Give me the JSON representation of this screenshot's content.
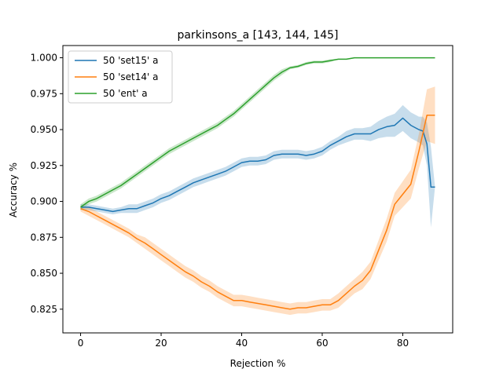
{
  "chart_data": {
    "type": "line",
    "title": "parkinsons_a  [143, 144, 145]",
    "xlabel": "Rejection %",
    "ylabel": "Accuracy %",
    "xlim": [
      -4.4,
      92.4
    ],
    "ylim": [
      0.8085,
      1.0085
    ],
    "xticks": [
      0,
      20,
      40,
      60,
      80
    ],
    "yticks": [
      0.825,
      0.85,
      0.875,
      0.9,
      0.925,
      0.95,
      0.975,
      1.0
    ],
    "xtick_labels": [
      "0",
      "20",
      "40",
      "60",
      "80"
    ],
    "ytick_labels": [
      "0.825",
      "0.850",
      "0.875",
      "0.900",
      "0.925",
      "0.950",
      "0.975",
      "1.000"
    ],
    "grid": false,
    "legend_position": "top-left",
    "series": [
      {
        "name": "50 'set15' a",
        "color": "#1f77b4",
        "x": [
          0,
          2,
          4,
          6,
          8,
          10,
          12,
          14,
          16,
          18,
          20,
          22,
          24,
          26,
          28,
          30,
          32,
          34,
          36,
          38,
          40,
          42,
          44,
          46,
          48,
          50,
          52,
          54,
          56,
          58,
          60,
          62,
          64,
          66,
          68,
          70,
          72,
          74,
          76,
          78,
          80,
          82,
          84,
          85,
          86,
          87,
          88
        ],
        "y": [
          0.896,
          0.896,
          0.895,
          0.894,
          0.893,
          0.894,
          0.895,
          0.895,
          0.897,
          0.899,
          0.902,
          0.904,
          0.907,
          0.91,
          0.913,
          0.915,
          0.917,
          0.919,
          0.921,
          0.924,
          0.927,
          0.928,
          0.928,
          0.929,
          0.932,
          0.933,
          0.933,
          0.933,
          0.932,
          0.933,
          0.935,
          0.939,
          0.942,
          0.945,
          0.947,
          0.947,
          0.947,
          0.95,
          0.952,
          0.953,
          0.958,
          0.953,
          0.95,
          0.949,
          0.94,
          0.91,
          0.91
        ],
        "band": [
          0.002,
          0.002,
          0.002,
          0.002,
          0.002,
          0.002,
          0.003,
          0.003,
          0.003,
          0.003,
          0.003,
          0.003,
          0.003,
          0.003,
          0.003,
          0.003,
          0.003,
          0.003,
          0.003,
          0.003,
          0.003,
          0.003,
          0.003,
          0.003,
          0.003,
          0.003,
          0.003,
          0.003,
          0.003,
          0.003,
          0.003,
          0.003,
          0.003,
          0.004,
          0.004,
          0.004,
          0.005,
          0.006,
          0.007,
          0.008,
          0.009,
          0.009,
          0.009,
          0.01,
          0.015,
          0.028,
          0.0
        ]
      },
      {
        "name": "50 'set14' a",
        "color": "#ff7f0e",
        "x": [
          0,
          2,
          4,
          6,
          8,
          10,
          12,
          14,
          16,
          18,
          20,
          22,
          24,
          26,
          28,
          30,
          32,
          34,
          36,
          38,
          40,
          42,
          44,
          46,
          48,
          50,
          52,
          54,
          56,
          58,
          60,
          62,
          64,
          66,
          68,
          70,
          72,
          74,
          76,
          78,
          80,
          82,
          84,
          86,
          88
        ],
        "y": [
          0.895,
          0.893,
          0.89,
          0.887,
          0.884,
          0.881,
          0.878,
          0.874,
          0.871,
          0.867,
          0.863,
          0.859,
          0.855,
          0.851,
          0.848,
          0.844,
          0.841,
          0.837,
          0.834,
          0.831,
          0.831,
          0.83,
          0.829,
          0.828,
          0.827,
          0.826,
          0.825,
          0.826,
          0.826,
          0.827,
          0.828,
          0.828,
          0.831,
          0.836,
          0.841,
          0.845,
          0.852,
          0.866,
          0.88,
          0.898,
          0.905,
          0.912,
          0.935,
          0.96,
          0.96
        ],
        "band": [
          0.002,
          0.003,
          0.003,
          0.003,
          0.003,
          0.003,
          0.003,
          0.003,
          0.004,
          0.004,
          0.004,
          0.004,
          0.004,
          0.004,
          0.004,
          0.004,
          0.004,
          0.004,
          0.004,
          0.004,
          0.004,
          0.004,
          0.004,
          0.004,
          0.004,
          0.004,
          0.004,
          0.004,
          0.004,
          0.004,
          0.004,
          0.004,
          0.005,
          0.005,
          0.005,
          0.006,
          0.006,
          0.007,
          0.008,
          0.008,
          0.009,
          0.01,
          0.012,
          0.018,
          0.02
        ]
      },
      {
        "name": "50 'ent' a",
        "color": "#2ca02c",
        "x": [
          0,
          2,
          4,
          6,
          8,
          10,
          12,
          14,
          16,
          18,
          20,
          22,
          24,
          26,
          28,
          30,
          32,
          34,
          36,
          38,
          40,
          42,
          44,
          46,
          48,
          50,
          52,
          54,
          56,
          58,
          60,
          62,
          64,
          66,
          68,
          70,
          72,
          74,
          76,
          78,
          80,
          82,
          84,
          86,
          88
        ],
        "y": [
          0.896,
          0.9,
          0.902,
          0.905,
          0.908,
          0.911,
          0.915,
          0.919,
          0.923,
          0.927,
          0.931,
          0.935,
          0.938,
          0.941,
          0.944,
          0.947,
          0.95,
          0.953,
          0.957,
          0.961,
          0.966,
          0.971,
          0.976,
          0.981,
          0.986,
          0.99,
          0.993,
          0.994,
          0.996,
          0.997,
          0.997,
          0.998,
          0.999,
          0.999,
          1.0,
          1.0,
          1.0,
          1.0,
          1.0,
          1.0,
          1.0,
          1.0,
          1.0,
          1.0,
          1.0
        ],
        "band": [
          0.002,
          0.002,
          0.002,
          0.002,
          0.002,
          0.002,
          0.002,
          0.002,
          0.002,
          0.002,
          0.002,
          0.002,
          0.002,
          0.002,
          0.002,
          0.002,
          0.002,
          0.002,
          0.002,
          0.002,
          0.002,
          0.002,
          0.002,
          0.002,
          0.002,
          0.002,
          0.001,
          0.001,
          0.001,
          0.001,
          0.001,
          0.001,
          0.0,
          0.0,
          0.0,
          0.0,
          0.0,
          0.0,
          0.0,
          0.0,
          0.0,
          0.0,
          0.0,
          0.0,
          0.0
        ]
      }
    ]
  }
}
